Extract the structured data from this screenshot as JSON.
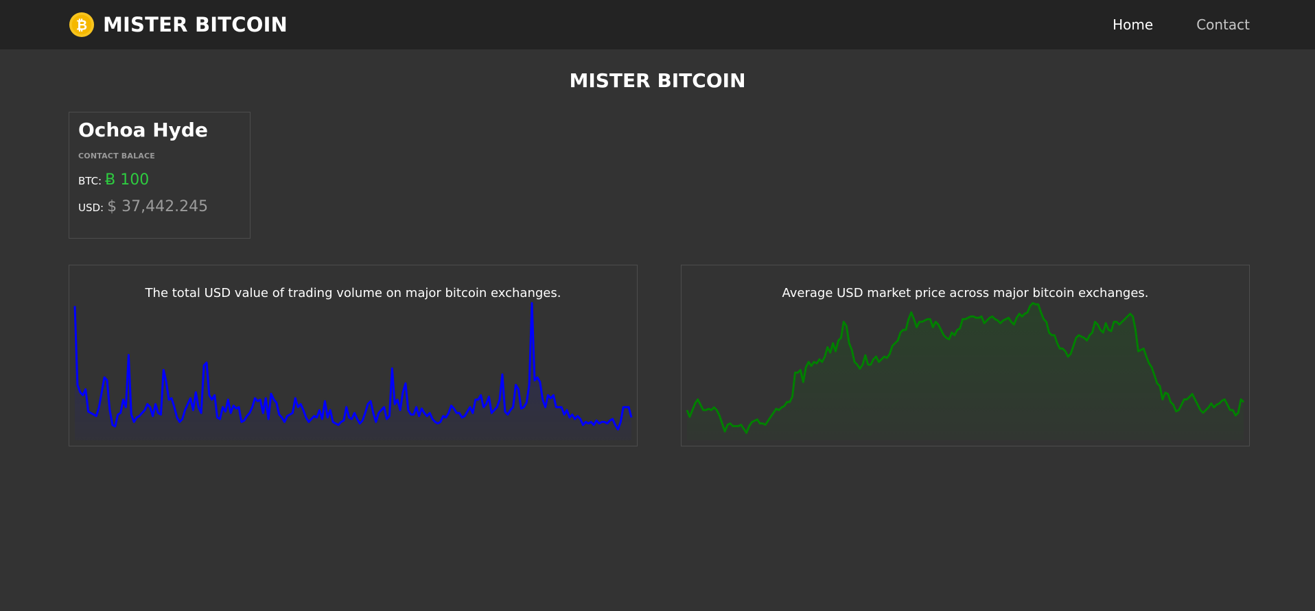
{
  "header": {
    "brand_title": "MISTER BITCOIN",
    "logo_icon": "bitcoin-logo-icon",
    "nav": [
      {
        "label": "Home"
      },
      {
        "label": "Contact"
      }
    ]
  },
  "page": {
    "title": "MISTER BITCOIN"
  },
  "contact": {
    "name": "Ochoa Hyde",
    "subtitle": "CONTACT BALACE",
    "btc_label": "BTC:",
    "btc_value": "Ƀ 100",
    "usd_label": "USD:",
    "usd_value": "$ 37,442.245"
  },
  "colors": {
    "volume_line": "#0000ff",
    "price_line": "#008000",
    "btc_value": "#2ecc40",
    "logo": "#f7c41f"
  },
  "chart_data": [
    {
      "type": "line",
      "title": "The total USD value of trading volume on major bitcoin exchanges.",
      "color": "#0000ff",
      "values": [
        88,
        35,
        30,
        28,
        32,
        17,
        16,
        15,
        14,
        20,
        30,
        40,
        38,
        18,
        8,
        7,
        15,
        16,
        25,
        20,
        55,
        15,
        10,
        13,
        14,
        16,
        18,
        22,
        20,
        14,
        22,
        16,
        15,
        45,
        37,
        25,
        26,
        20,
        13,
        10,
        12,
        18,
        22,
        26,
        18,
        30,
        20,
        16,
        48,
        50,
        28,
        25,
        28,
        13,
        12,
        20,
        17,
        25,
        16,
        21,
        19,
        20,
        10,
        11,
        14,
        16,
        20,
        26,
        24,
        25,
        16,
        26,
        12,
        29,
        25,
        23,
        15,
        13,
        10,
        14,
        15,
        16,
        26,
        20,
        22,
        18,
        13,
        10,
        12,
        14,
        13,
        18,
        12,
        24,
        13,
        18,
        10,
        9,
        8,
        10,
        11,
        20,
        13,
        12,
        16,
        12,
        9,
        11,
        16,
        22,
        24,
        16,
        10,
        16,
        18,
        20,
        12,
        14,
        46,
        22,
        25,
        18,
        30,
        36,
        18,
        15,
        15,
        20,
        14,
        19,
        16,
        14,
        16,
        12,
        10,
        9,
        10,
        14,
        13,
        16,
        21,
        19,
        16,
        16,
        13,
        14,
        17,
        20,
        16,
        25,
        25,
        28,
        20,
        22,
        27,
        16,
        18,
        20,
        25,
        42,
        17,
        15,
        18,
        20,
        35,
        32,
        19,
        20,
        23,
        35,
        90,
        38,
        40,
        37,
        25,
        20,
        28,
        26,
        28,
        20,
        20,
        20,
        15,
        18,
        13,
        15,
        12,
        14,
        12,
        8,
        10,
        9,
        10,
        8,
        11,
        9,
        10,
        10,
        9,
        11,
        12,
        8,
        5,
        10,
        20,
        20,
        20,
        13
      ]
    },
    {
      "type": "line",
      "title": "Average USD market price across major bitcoin exchanges.",
      "color": "#008000",
      "values": [
        20,
        15,
        20,
        25,
        28,
        24,
        20,
        20,
        21,
        20,
        22,
        20,
        16,
        10,
        4,
        9,
        10,
        8,
        8,
        8,
        9,
        6,
        3,
        8,
        11,
        12,
        13,
        10,
        10,
        9,
        12,
        15,
        18,
        21,
        20,
        22,
        23,
        26,
        26,
        30,
        48,
        48,
        50,
        41,
        52,
        56,
        53,
        56,
        55,
        58,
        56,
        60,
        67,
        63,
        70,
        64,
        72,
        74,
        86,
        83,
        70,
        65,
        56,
        54,
        51,
        54,
        61,
        54,
        54,
        58,
        60,
        56,
        58,
        60,
        59,
        62,
        68,
        70,
        72,
        78,
        80,
        80,
        88,
        93,
        88,
        82,
        86,
        86,
        87,
        88,
        88,
        82,
        86,
        84,
        80,
        76,
        74,
        73,
        78,
        76,
        80,
        81,
        88,
        88,
        89,
        90,
        90,
        89,
        89,
        90,
        85,
        87,
        89,
        90,
        88,
        87,
        85,
        87,
        88,
        89,
        86,
        84,
        89,
        92,
        90,
        92,
        93,
        98,
        100,
        99,
        99,
        93,
        88,
        86,
        78,
        76,
        76,
        70,
        66,
        66,
        64,
        60,
        62,
        68,
        74,
        76,
        75,
        74,
        72,
        76,
        78,
        86,
        84,
        80,
        78,
        85,
        80,
        79,
        86,
        86,
        84,
        86,
        88,
        90,
        92,
        90,
        80,
        64,
        65,
        66,
        60,
        55,
        52,
        46,
        40,
        38,
        28,
        33,
        32,
        26,
        24,
        19,
        20,
        24,
        28,
        28,
        30,
        32,
        28,
        24,
        20,
        18,
        20,
        22,
        25,
        22,
        24,
        25,
        27,
        28,
        24,
        20,
        20,
        16,
        18,
        28,
        26
      ]
    }
  ]
}
